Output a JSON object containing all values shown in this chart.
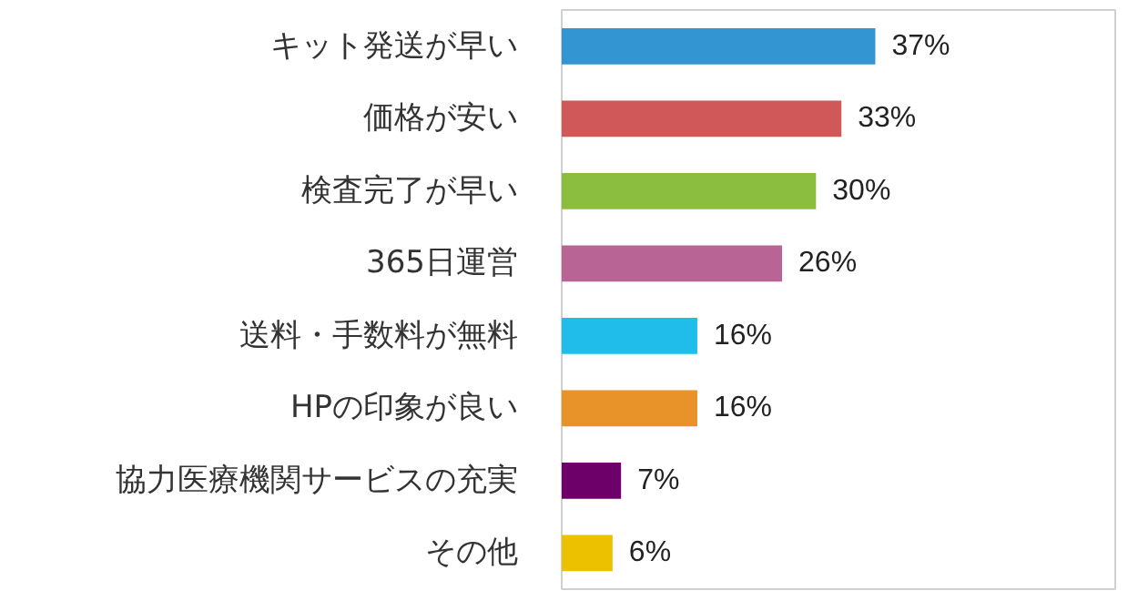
{
  "chart_data": {
    "type": "bar",
    "orientation": "horizontal",
    "categories": [
      "キット発送が早い",
      "価格が安い",
      "検査完了が早い",
      "365日運営",
      "送料・手数料が無料",
      "HPの印象が良い",
      "協力医療機関サービスの充実",
      "その他"
    ],
    "values": [
      37,
      33,
      30,
      26,
      16,
      16,
      7,
      6
    ],
    "colors": [
      "#3396d3",
      "#d05858",
      "#8bbd3e",
      "#b86494",
      "#20bdeb",
      "#e8922a",
      "#6e0069",
      "#ecc100"
    ],
    "value_labels": [
      "37%",
      "33%",
      "30%",
      "26%",
      "16%",
      "16%",
      "7%",
      "6%"
    ]
  }
}
